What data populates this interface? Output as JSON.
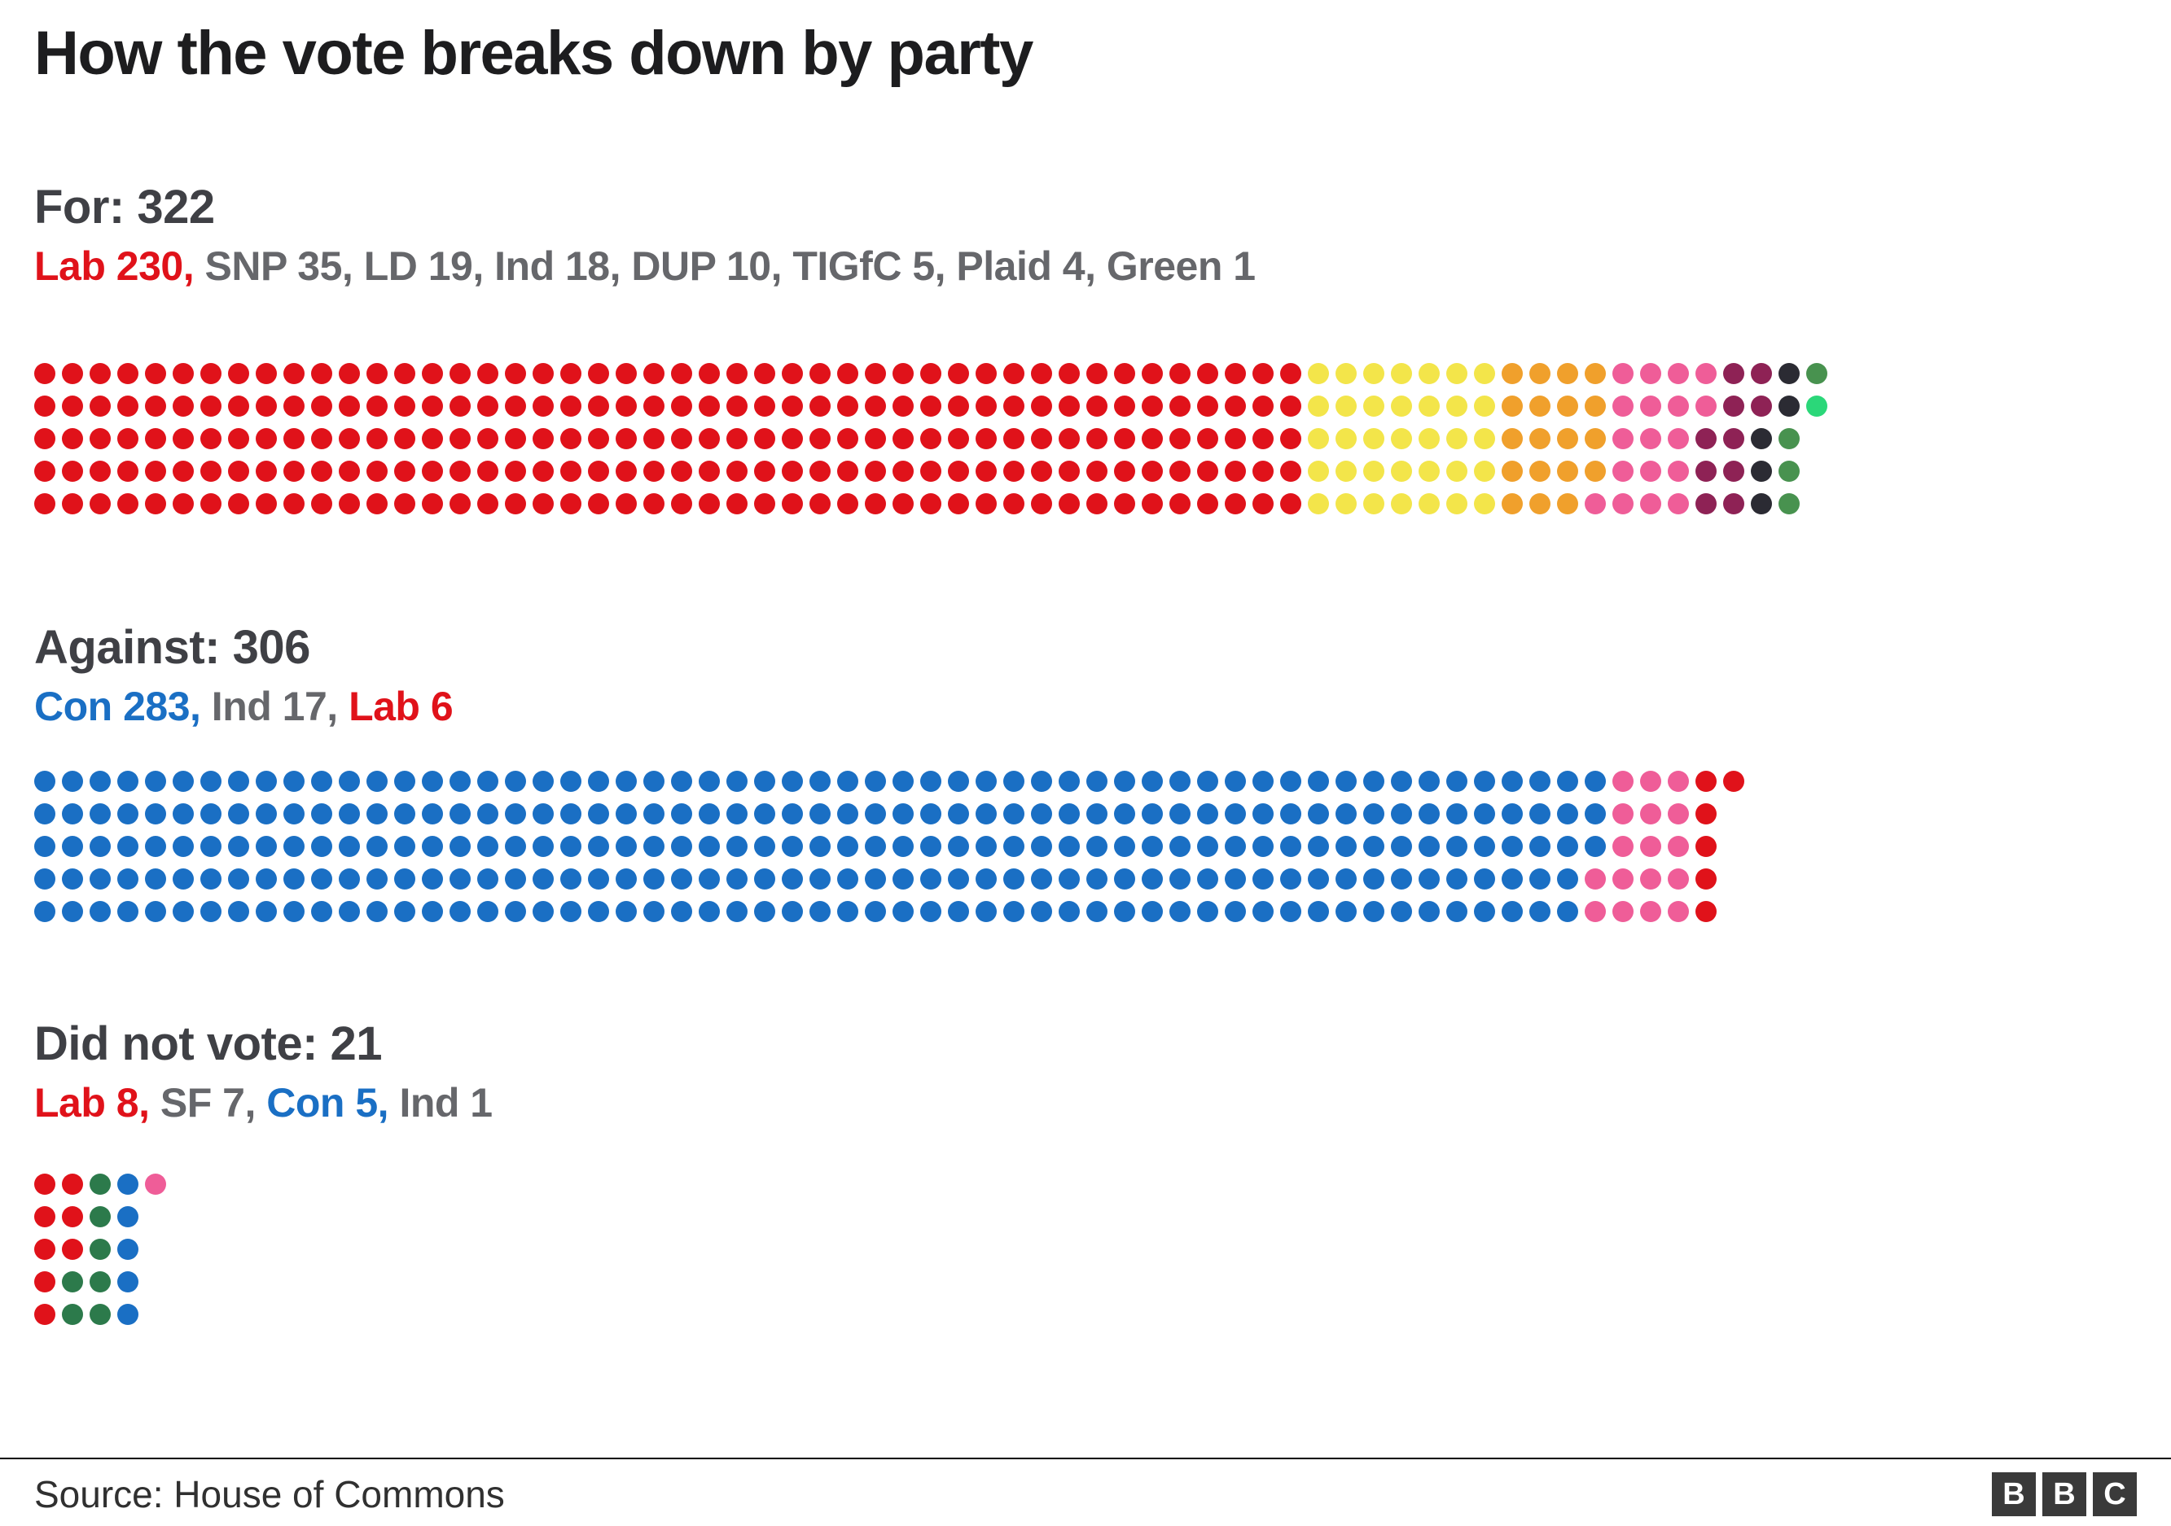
{
  "title": "How the vote breaks down by party",
  "footer": {
    "source": "Source: House of Commons",
    "logo_letters": [
      "B",
      "B",
      "C"
    ]
  },
  "palette": {
    "lab_red": "#e0121a",
    "snp_yellow": "#f3e54a",
    "ld_orange": "#f0a02c",
    "ind_pink": "#ef5d98",
    "dup_maroon": "#8e2255",
    "tigfc_black": "#2b2b33",
    "plaid_green": "#48924f",
    "green_party": "#2bd779",
    "con_blue": "#1a6fc4",
    "sf_green": "#2c7a4b",
    "subtitle_gray": "#66676b",
    "heading_gray": "#3f4045"
  },
  "chart_data": {
    "type": "dot-matrix",
    "title": "How the vote breaks down by party",
    "rows_per_column": 5,
    "fill_order": "column-major, top to bottom",
    "sections": [
      {
        "label": "For",
        "heading": "For: 322",
        "total": 322,
        "subtitle_parts": [
          {
            "text": "Lab 230,",
            "color": "#e0121a"
          },
          {
            "text": " SNP 35, LD 19, Ind 18, DUP 10, TIGfC 5, Plaid 4, Green 1",
            "color": "#66676b"
          }
        ],
        "groups": [
          {
            "party": "Lab",
            "count": 230,
            "color": "#e0121a"
          },
          {
            "party": "SNP",
            "count": 35,
            "color": "#f3e54a"
          },
          {
            "party": "LD",
            "count": 19,
            "color": "#f0a02c"
          },
          {
            "party": "Ind",
            "count": 18,
            "color": "#ef5d98"
          },
          {
            "party": "DUP",
            "count": 10,
            "color": "#8e2255"
          },
          {
            "party": "TIGfC",
            "count": 5,
            "color": "#2b2b33"
          },
          {
            "party": "Plaid",
            "count": 4,
            "color": "#48924f"
          },
          {
            "party": "Green",
            "count": 1,
            "color": "#2bd779"
          }
        ]
      },
      {
        "label": "Against",
        "heading": "Against: 306",
        "total": 306,
        "subtitle_parts": [
          {
            "text": "Con 283,",
            "color": "#1a6fc4"
          },
          {
            "text": " Ind 17, ",
            "color": "#66676b"
          },
          {
            "text": "Lab 6",
            "color": "#e0121a"
          }
        ],
        "groups": [
          {
            "party": "Con",
            "count": 283,
            "color": "#1a6fc4"
          },
          {
            "party": "Ind",
            "count": 17,
            "color": "#ef5d98"
          },
          {
            "party": "Lab",
            "count": 6,
            "color": "#e0121a"
          }
        ]
      },
      {
        "label": "Did not vote",
        "heading": "Did not vote: 21",
        "total": 21,
        "subtitle_parts": [
          {
            "text": "Lab 8,",
            "color": "#e0121a"
          },
          {
            "text": " SF 7, ",
            "color": "#66676b"
          },
          {
            "text": "Con 5,",
            "color": "#1a6fc4"
          },
          {
            "text": " Ind 1",
            "color": "#66676b"
          }
        ],
        "groups": [
          {
            "party": "Lab",
            "count": 8,
            "color": "#e0121a"
          },
          {
            "party": "SF",
            "count": 7,
            "color": "#2c7a4b"
          },
          {
            "party": "Con",
            "count": 5,
            "color": "#1a6fc4"
          },
          {
            "party": "Ind",
            "count": 1,
            "color": "#ef5d98"
          }
        ]
      }
    ]
  }
}
